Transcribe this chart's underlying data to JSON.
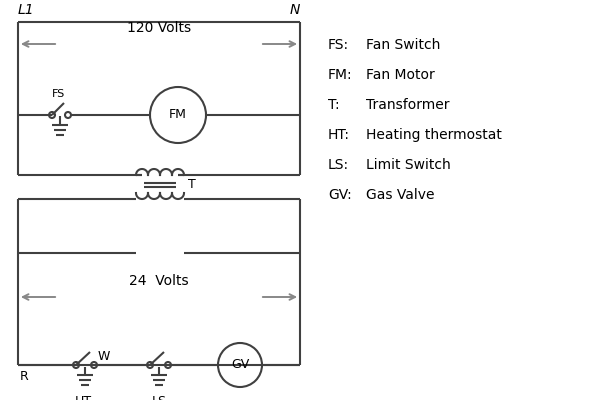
{
  "bg_color": "#ffffff",
  "line_color": "#404040",
  "arrow_color": "#888888",
  "text_color": "#000000",
  "legend_items": [
    [
      "FS:",
      "Fan Switch"
    ],
    [
      "FM:",
      "Fan Motor"
    ],
    [
      "T:",
      "Transformer"
    ],
    [
      "HT:",
      "Heating thermostat"
    ],
    [
      "LS:",
      "Limit Switch"
    ],
    [
      "GV:",
      "Gas Valve"
    ]
  ],
  "L1_label": "L1",
  "N_label": "N",
  "volts120_label": "120 Volts",
  "volts24_label": "24  Volts",
  "T_label": "T",
  "FS_label": "FS",
  "FM_label": "FM",
  "R_label": "R",
  "W_label": "W",
  "HT_label": "HT",
  "LS_label": "LS",
  "GV_label": "GV"
}
